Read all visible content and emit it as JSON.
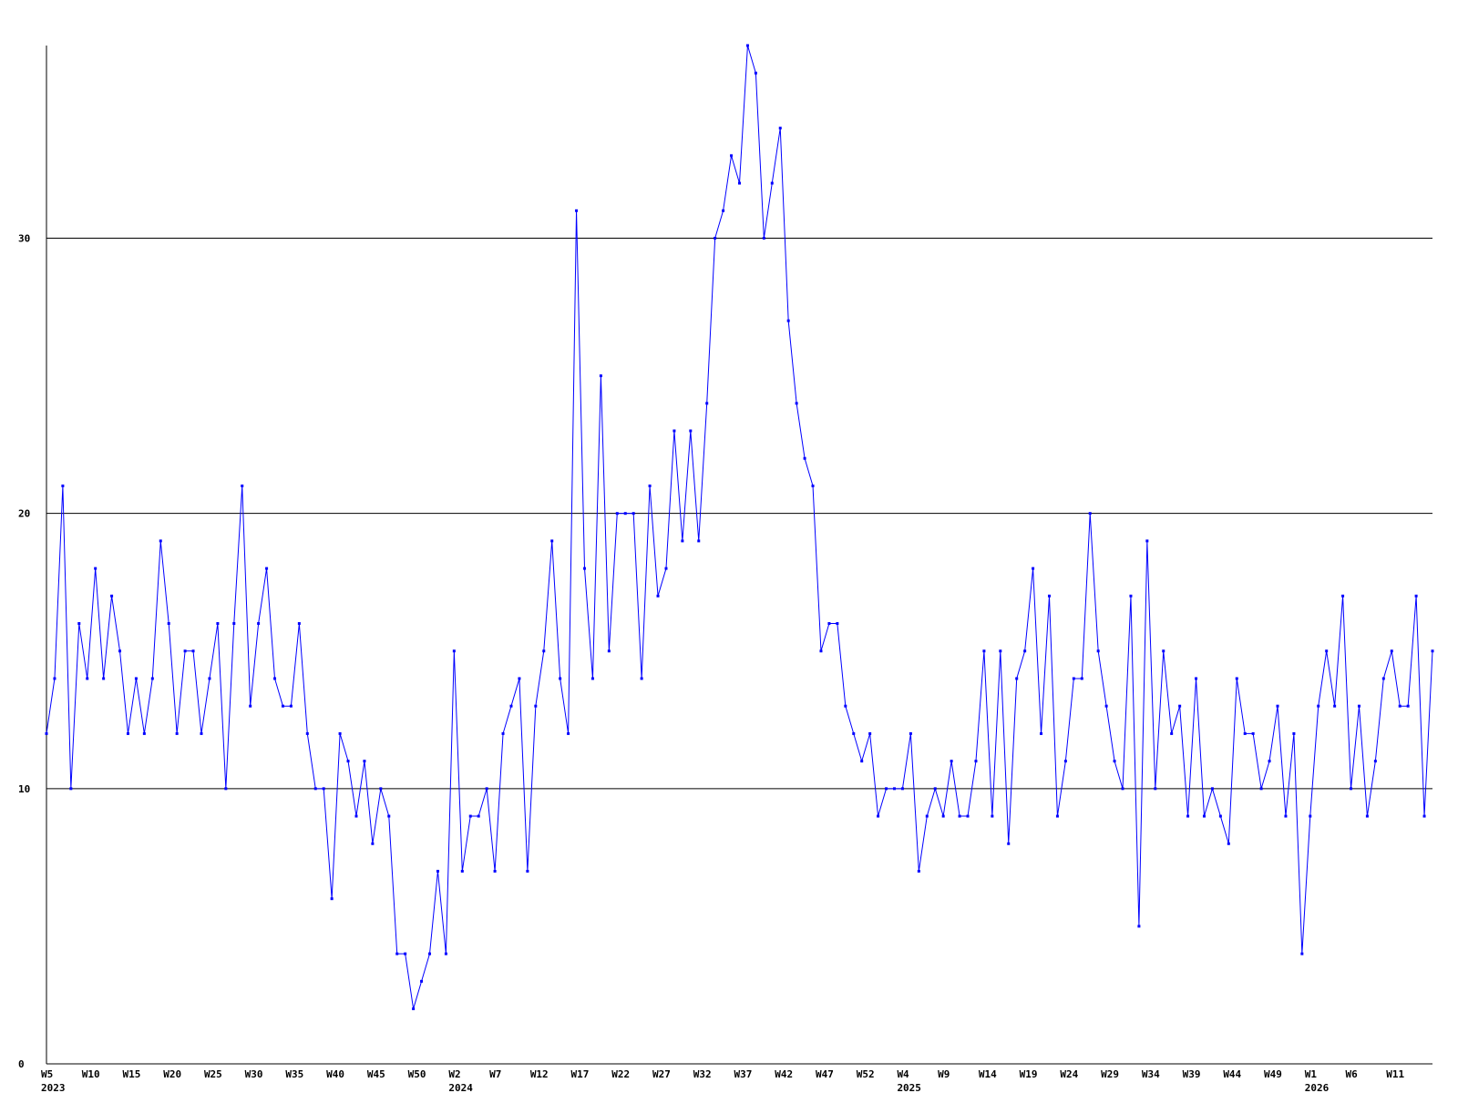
{
  "chart_data": {
    "type": "line",
    "title": "",
    "xlabel": "",
    "ylabel": "",
    "ylim": [
      0,
      37
    ],
    "grid": true,
    "colors": {
      "line": "#0000ff",
      "grid": "#000000",
      "axis": "#000000"
    },
    "y_ticks": [
      "0",
      "10",
      "20",
      "30"
    ],
    "x_tick_labels": [
      {
        "week": "W5",
        "year": "2023"
      },
      {
        "week": "W10",
        "year": ""
      },
      {
        "week": "W15",
        "year": ""
      },
      {
        "week": "W20",
        "year": ""
      },
      {
        "week": "W25",
        "year": ""
      },
      {
        "week": "W30",
        "year": ""
      },
      {
        "week": "W35",
        "year": ""
      },
      {
        "week": "W40",
        "year": ""
      },
      {
        "week": "W45",
        "year": ""
      },
      {
        "week": "W50",
        "year": ""
      },
      {
        "week": "W2",
        "year": "2024"
      },
      {
        "week": "W7",
        "year": ""
      },
      {
        "week": "W12",
        "year": ""
      },
      {
        "week": "W17",
        "year": ""
      },
      {
        "week": "W22",
        "year": ""
      },
      {
        "week": "W27",
        "year": ""
      },
      {
        "week": "W32",
        "year": ""
      },
      {
        "week": "W37",
        "year": ""
      },
      {
        "week": "W42",
        "year": ""
      },
      {
        "week": "W47",
        "year": ""
      },
      {
        "week": "W52",
        "year": ""
      },
      {
        "week": "W4",
        "year": "2025"
      },
      {
        "week": "W9",
        "year": ""
      },
      {
        "week": "W14",
        "year": ""
      },
      {
        "week": "W19",
        "year": ""
      },
      {
        "week": "W24",
        "year": ""
      },
      {
        "week": "W29",
        "year": ""
      },
      {
        "week": "W34",
        "year": ""
      },
      {
        "week": "W39",
        "year": ""
      },
      {
        "week": "W44",
        "year": ""
      },
      {
        "week": "W49",
        "year": ""
      },
      {
        "week": "W1",
        "year": "2026"
      },
      {
        "week": "W6",
        "year": ""
      },
      {
        "week": "W11",
        "year": ""
      }
    ],
    "series": [
      {
        "values": [
          12,
          14,
          21,
          10,
          16,
          14,
          18,
          14,
          17,
          15,
          12,
          14,
          12,
          14,
          19,
          16,
          12,
          15,
          15,
          12,
          14,
          16,
          10,
          16,
          21,
          13,
          16,
          18,
          14,
          13,
          13,
          16,
          12,
          10,
          10,
          6,
          12,
          11,
          9,
          11,
          8,
          10,
          9,
          4,
          4,
          2,
          3,
          4,
          7,
          4,
          15,
          7,
          9,
          9,
          10,
          7,
          12,
          13,
          14,
          7,
          13,
          15,
          19,
          14,
          12,
          31,
          18,
          14,
          25,
          15,
          20,
          20,
          20,
          14,
          21,
          17,
          18,
          23,
          19,
          23,
          19,
          24,
          30,
          31,
          33,
          32,
          37,
          36,
          30,
          32,
          34,
          27,
          24,
          22,
          21,
          15,
          16,
          16,
          13,
          12,
          11,
          12,
          9,
          10,
          10,
          10,
          12,
          7,
          9,
          10,
          9,
          11,
          9,
          9,
          11,
          15,
          9,
          15,
          8,
          14,
          15,
          18,
          12,
          17,
          9,
          11,
          14,
          14,
          20,
          15,
          13,
          11,
          10,
          17,
          5,
          19,
          10,
          15,
          12,
          13,
          9,
          14,
          9,
          10,
          9,
          8,
          14,
          12,
          12,
          10,
          11,
          13,
          9,
          12,
          4,
          9,
          13,
          15,
          13,
          17,
          10,
          13,
          9,
          11,
          14,
          15,
          13,
          13,
          17,
          9,
          15
        ]
      }
    ]
  }
}
